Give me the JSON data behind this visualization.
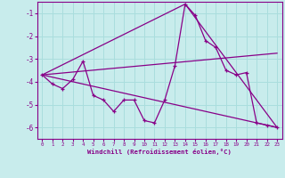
{
  "xlabel": "Windchill (Refroidissement éolien,°C)",
  "xlim": [
    -0.5,
    23.5
  ],
  "ylim": [
    -6.5,
    -0.5
  ],
  "yticks": [
    -6,
    -5,
    -4,
    -3,
    -2,
    -1
  ],
  "xticks": [
    0,
    1,
    2,
    3,
    4,
    5,
    6,
    7,
    8,
    9,
    10,
    11,
    12,
    13,
    14,
    15,
    16,
    17,
    18,
    19,
    20,
    21,
    22,
    23
  ],
  "line_color": "#880088",
  "bg_color": "#c8ecec",
  "grid_color": "#aadddd",
  "series_main": {
    "x": [
      0,
      1,
      2,
      3,
      4,
      5,
      6,
      7,
      8,
      9,
      10,
      11,
      12,
      13,
      14,
      15,
      16,
      17,
      18,
      19,
      20,
      21,
      22,
      23
    ],
    "y": [
      -3.7,
      -4.1,
      -4.3,
      -3.9,
      -3.1,
      -4.6,
      -4.8,
      -5.3,
      -4.8,
      -4.8,
      -5.7,
      -5.8,
      -4.8,
      -3.3,
      -0.6,
      -1.1,
      -2.2,
      -2.5,
      -3.5,
      -3.7,
      -3.6,
      -5.8,
      -5.9,
      -6.0
    ]
  },
  "series_line1": {
    "comment": "straight line from (0,-3.7) to (23,-6.0)",
    "x": [
      0,
      23
    ],
    "y": [
      -3.7,
      -6.0
    ]
  },
  "series_line2": {
    "comment": "line from (0,-3.7) through peak at (14,-0.6) to (23,-6.0)",
    "x": [
      0,
      14,
      23
    ],
    "y": [
      -3.7,
      -0.6,
      -6.0
    ]
  },
  "series_line3": {
    "x": [
      0,
      23
    ],
    "y": [
      -3.7,
      -2.75
    ]
  }
}
